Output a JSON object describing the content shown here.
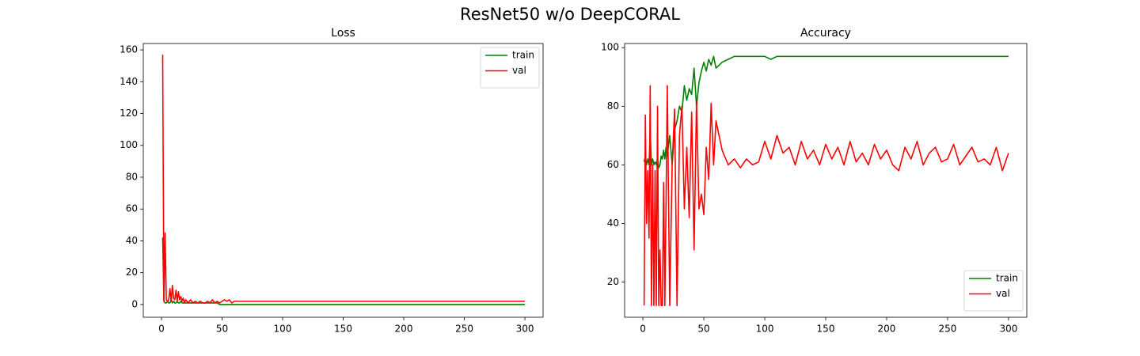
{
  "title": "ResNet50 w/o DeepCORAL",
  "chart_data": [
    {
      "type": "line",
      "title": "Loss",
      "x": [
        1,
        2,
        3,
        4,
        5,
        6,
        7,
        8,
        9,
        10,
        11,
        12,
        13,
        14,
        15,
        16,
        17,
        18,
        19,
        20,
        22,
        24,
        26,
        28,
        30,
        32,
        34,
        36,
        38,
        40,
        42,
        44,
        46,
        48,
        50,
        52,
        54,
        56,
        58,
        60,
        65,
        70,
        75,
        80,
        85,
        90,
        95,
        100,
        105,
        110,
        115,
        120,
        125,
        130,
        135,
        140,
        145,
        150,
        155,
        160,
        165,
        170,
        175,
        180,
        185,
        190,
        195,
        200,
        205,
        210,
        215,
        220,
        225,
        230,
        235,
        240,
        245,
        250,
        255,
        260,
        265,
        270,
        275,
        280,
        285,
        290,
        295,
        300
      ],
      "series": [
        {
          "name": "train",
          "color": "#008000",
          "values": [
            42,
            2,
            1,
            1,
            2,
            1,
            1,
            3,
            1,
            2,
            1,
            1,
            2,
            1,
            1,
            2,
            1,
            1,
            1,
            1,
            1,
            1,
            1,
            1,
            1,
            1,
            1,
            1,
            1,
            1,
            1,
            1,
            1,
            0,
            0,
            0,
            0,
            0,
            0,
            0,
            0,
            0,
            0,
            0,
            0,
            0,
            0,
            0,
            0,
            0,
            0,
            0,
            0,
            0,
            0,
            0,
            0,
            0,
            0,
            0,
            0,
            0,
            0,
            0,
            0,
            0,
            0,
            0,
            0,
            0,
            0,
            0,
            0,
            0,
            0,
            0,
            0,
            0,
            0,
            0,
            0,
            0,
            0,
            0,
            0,
            0,
            0,
            0
          ]
        },
        {
          "name": "val",
          "color": "#ff0000",
          "values": [
            157,
            2,
            45,
            3,
            2,
            3,
            10,
            2,
            12,
            4,
            3,
            9,
            2,
            8,
            3,
            5,
            2,
            4,
            1,
            3,
            1,
            3,
            1,
            2,
            1,
            2,
            1,
            1,
            2,
            1,
            3,
            1,
            2,
            1,
            2,
            3,
            2,
            3,
            1,
            2,
            2,
            2,
            2,
            2,
            2,
            2,
            2,
            2,
            2,
            2,
            2,
            2,
            2,
            2,
            2,
            2,
            2,
            2,
            2,
            2,
            2,
            2,
            2,
            2,
            2,
            2,
            2,
            2,
            2,
            2,
            2,
            2,
            2,
            2,
            2,
            2,
            2,
            2,
            2,
            2,
            2,
            2,
            2,
            2,
            2,
            2,
            2,
            2
          ]
        }
      ],
      "xlim": [
        -15,
        315
      ],
      "ylim": [
        -8,
        164
      ],
      "xticks": [
        0,
        50,
        100,
        150,
        200,
        250,
        300
      ],
      "yticks": [
        0,
        20,
        40,
        60,
        80,
        100,
        120,
        140,
        160
      ],
      "legend": "upper right"
    },
    {
      "type": "line",
      "title": "Accuracy",
      "x": [
        1,
        2,
        3,
        4,
        5,
        6,
        7,
        8,
        9,
        10,
        11,
        12,
        13,
        14,
        15,
        16,
        17,
        18,
        19,
        20,
        22,
        24,
        26,
        28,
        30,
        32,
        34,
        36,
        38,
        40,
        42,
        44,
        46,
        48,
        50,
        52,
        54,
        56,
        58,
        60,
        65,
        70,
        75,
        80,
        85,
        90,
        95,
        100,
        105,
        110,
        115,
        120,
        125,
        130,
        135,
        140,
        145,
        150,
        155,
        160,
        165,
        170,
        175,
        180,
        185,
        190,
        195,
        200,
        205,
        210,
        215,
        220,
        225,
        230,
        235,
        240,
        245,
        250,
        255,
        260,
        265,
        270,
        275,
        280,
        285,
        290,
        295,
        300
      ],
      "series": [
        {
          "name": "train",
          "color": "#008000",
          "values": [
            61,
            63,
            60,
            62,
            60,
            71,
            60,
            62,
            60,
            61,
            60,
            62,
            59,
            60,
            63,
            62,
            65,
            62,
            66,
            63,
            70,
            60,
            72,
            75,
            80,
            78,
            87,
            82,
            86,
            84,
            93,
            80,
            88,
            92,
            95,
            92,
            96,
            94,
            97,
            93,
            95,
            96,
            97,
            97,
            97,
            97,
            97,
            97,
            96,
            97,
            97,
            97,
            97,
            97,
            97,
            97,
            97,
            97,
            97,
            97,
            97,
            97,
            97,
            97,
            97,
            97,
            97,
            97,
            97,
            97,
            97,
            97,
            97,
            97,
            97,
            97,
            97,
            97,
            97,
            97,
            97,
            97,
            97,
            97,
            97,
            97,
            97,
            97
          ]
        },
        {
          "name": "val",
          "color": "#ff0000",
          "values": [
            12,
            77,
            40,
            58,
            35,
            87,
            12,
            60,
            12,
            58,
            12,
            80,
            12,
            31,
            12,
            12,
            54,
            12,
            47,
            87,
            12,
            60,
            79,
            12,
            70,
            80,
            45,
            66,
            42,
            78,
            31,
            82,
            45,
            50,
            43,
            66,
            55,
            81,
            60,
            75,
            65,
            60,
            62,
            59,
            62,
            60,
            61,
            68,
            62,
            70,
            64,
            66,
            60,
            68,
            62,
            65,
            60,
            67,
            62,
            66,
            60,
            68,
            61,
            64,
            60,
            67,
            62,
            65,
            60,
            58,
            66,
            62,
            68,
            60,
            64,
            66,
            61,
            62,
            67,
            60,
            63,
            66,
            61,
            62,
            60,
            66,
            58,
            64
          ]
        }
      ],
      "xlim": [
        -15,
        315
      ],
      "ylim": [
        8,
        101.4
      ],
      "xticks": [
        0,
        50,
        100,
        150,
        200,
        250,
        300
      ],
      "yticks": [
        20,
        40,
        60,
        80,
        100
      ],
      "legend": "lower right"
    }
  ]
}
